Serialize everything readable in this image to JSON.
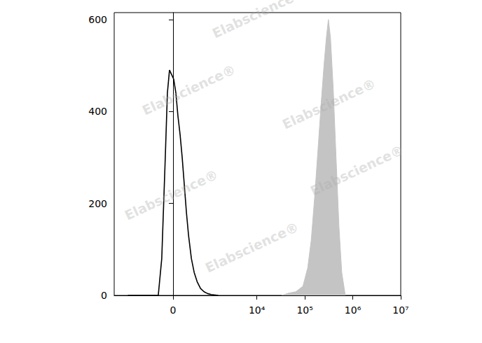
{
  "chart_data": {
    "type": "histogram",
    "watermark": "Elabscience®",
    "xlim": [
      -3000,
      10000000
    ],
    "xticks": [
      0,
      {
        "value": 10000,
        "label": "10⁴"
      },
      {
        "value": 100000,
        "label": "10⁵"
      },
      {
        "value": 1000000,
        "label": "10⁶"
      },
      {
        "value": 10000000,
        "label": "10⁷"
      }
    ],
    "ylim": [
      0,
      615
    ],
    "yticks": [
      0,
      200,
      400,
      600
    ],
    "grid": false,
    "series": [
      {
        "type": "line",
        "color": "#000000",
        "x": [
          -1542,
          -275,
          -203,
          -136,
          -98,
          -61,
          -24,
          12,
          49,
          85,
          123,
          162,
          203,
          246,
          292,
          357,
          428,
          511,
          621,
          750,
          903,
          1085,
          1542
        ],
        "values": [
          0,
          0,
          80,
          300,
          440,
          490,
          480,
          470,
          440,
          390,
          350,
          300,
          240,
          180,
          130,
          80,
          50,
          30,
          15,
          8,
          4,
          2,
          0
        ]
      },
      {
        "type": "area",
        "color": "#c4c4c4",
        "x": [
          33000,
          46400,
          65000,
          91300,
          115000,
          136000,
          162000,
          192000,
          220000,
          251000,
          281000,
          310000,
          343000,
          391000,
          448000,
          515000,
          589000,
          698000
        ],
        "values": [
          0,
          5,
          8,
          20,
          60,
          120,
          220,
          330,
          420,
          500,
          560,
          600,
          560,
          450,
          300,
          150,
          50,
          0
        ]
      }
    ]
  }
}
